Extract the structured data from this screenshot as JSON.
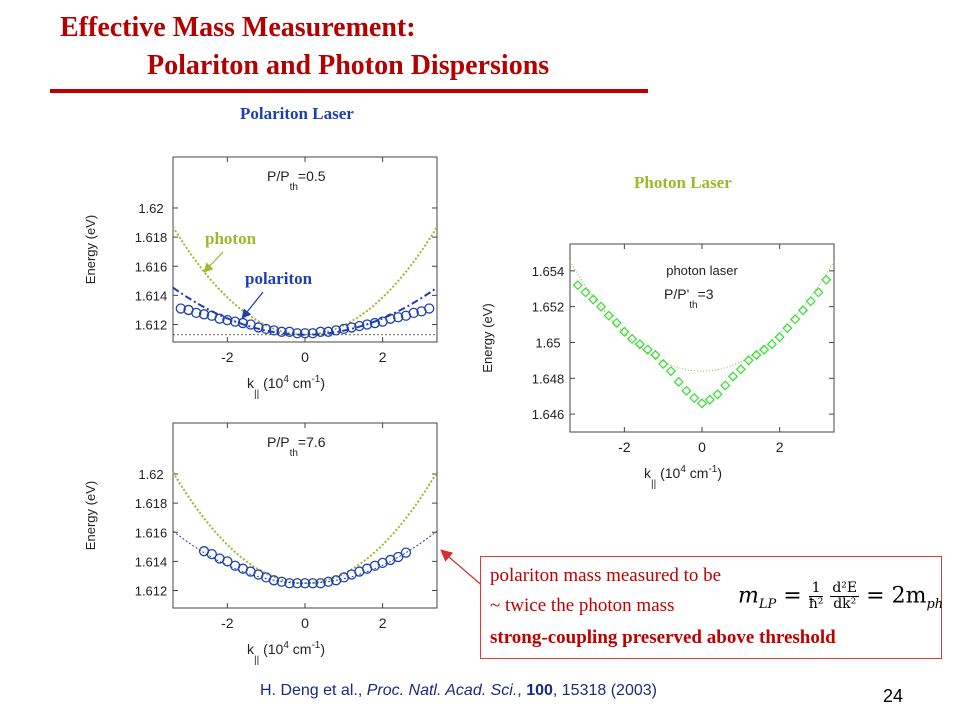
{
  "title": {
    "line1": "Effective Mass Measurement:",
    "line2": "Polariton and Photon Dispersions"
  },
  "panel_labels": {
    "polariton_laser": "Polariton Laser",
    "photon_laser": "Photon Laser"
  },
  "callout": {
    "line1": "polariton mass measured to be",
    "line2": "~ twice the photon mass",
    "line3": "strong-coupling preserved above threshold",
    "formula_lhs": "m",
    "formula_lhs_sub": "LP",
    "formula_eq": "=",
    "formula_num": "1",
    "formula_den": "ħ²",
    "formula_num2": "d²E",
    "formula_den2": "dk²",
    "formula_rhs": "= 2m",
    "formula_rhs_sub": "ph"
  },
  "citation": {
    "authors": "H. Deng et al., ",
    "journal": "Proc. Natl. Acad. Sci.",
    "sep": ", ",
    "volume": "100",
    "pages": ", 15318 (2003)"
  },
  "page_number": "24",
  "colors": {
    "title": "#b40000",
    "polariton": "#1f3fb0",
    "photon": "#9aba2a",
    "photon_laser_markers": "#33dd33",
    "callout": "#c00000"
  },
  "chart_data": [
    {
      "id": "polariton-low",
      "type": "scatter",
      "annotation": "P/P th=0.5",
      "annotation_main": "P/P",
      "annotation_sub": "th",
      "annotation_tail": "=0.5",
      "ylabel": "Energy (eV)",
      "xlabel_main": "k",
      "xlabel_sub": "||",
      "xlabel_unit_pre": " (10",
      "xlabel_unit_exp": "4",
      "xlabel_unit_mid": " cm",
      "xlabel_unit_exp2": "-1",
      "xlabel_unit_post": ")",
      "xlim": [
        -3.4,
        3.4
      ],
      "ylim": [
        1.6108,
        1.6235
      ],
      "xticks": [
        -2,
        0,
        2
      ],
      "xtick_labels": [
        "-2",
        "0",
        "2"
      ],
      "yticks": [
        1.612,
        1.614,
        1.616,
        1.618,
        1.62
      ],
      "ytick_labels": [
        "1.612",
        "1.614",
        "1.616",
        "1.618",
        "1.62"
      ],
      "label_photon": "photon",
      "label_polariton": "polariton",
      "photon_curve": {
        "E0": 1.6113,
        "a": 0.00064
      },
      "polariton_curve": {
        "E0": 1.6113,
        "a": 0.00028
      },
      "reference_line": 1.6113,
      "points": {
        "x": [
          -3.2,
          -3.0,
          -2.8,
          -2.6,
          -2.4,
          -2.2,
          -2.0,
          -1.8,
          -1.6,
          -1.4,
          -1.2,
          -1.0,
          -0.8,
          -0.6,
          -0.4,
          -0.2,
          0.0,
          0.2,
          0.4,
          0.6,
          0.8,
          1.0,
          1.2,
          1.4,
          1.6,
          1.8,
          2.0,
          2.2,
          2.4,
          2.6,
          2.8,
          3.0,
          3.2
        ],
        "y": [
          1.6131,
          1.613,
          1.6128,
          1.6127,
          1.6126,
          1.6124,
          1.6123,
          1.6122,
          1.6121,
          1.612,
          1.6118,
          1.6117,
          1.6116,
          1.6115,
          1.6115,
          1.6114,
          1.6114,
          1.6114,
          1.6115,
          1.6115,
          1.6116,
          1.6117,
          1.6118,
          1.6119,
          1.612,
          1.6121,
          1.6122,
          1.6124,
          1.6125,
          1.6126,
          1.6128,
          1.6129,
          1.6131
        ]
      }
    },
    {
      "id": "polariton-high",
      "type": "scatter",
      "annotation": "P/P th=7.6",
      "annotation_main": "P/P",
      "annotation_sub": "th",
      "annotation_tail": "=7.6",
      "ylabel": "Energy (eV)",
      "xlabel_main": "k",
      "xlabel_sub": "||",
      "xlabel_unit_pre": " (10",
      "xlabel_unit_exp": "4",
      "xlabel_unit_mid": " cm",
      "xlabel_unit_exp2": "-1",
      "xlabel_unit_post": ")",
      "xlim": [
        -3.4,
        3.4
      ],
      "ylim": [
        1.6108,
        1.6235
      ],
      "xticks": [
        -2,
        0,
        2
      ],
      "xtick_labels": [
        "-2",
        "0",
        "2"
      ],
      "yticks": [
        1.612,
        1.614,
        1.616,
        1.618,
        1.62
      ],
      "ytick_labels": [
        "1.612",
        "1.614",
        "1.616",
        "1.618",
        "1.62"
      ],
      "photon_curve": {
        "E0": 1.6125,
        "a": 0.00066
      },
      "polariton_curve": {
        "E0": 1.6125,
        "a": 0.00031
      },
      "points": {
        "x": [
          -2.6,
          -2.4,
          -2.2,
          -2.0,
          -1.8,
          -1.6,
          -1.4,
          -1.2,
          -1.0,
          -0.8,
          -0.6,
          -0.4,
          -0.2,
          0.0,
          0.2,
          0.4,
          0.6,
          0.8,
          1.0,
          1.2,
          1.4,
          1.6,
          1.8,
          2.0,
          2.2,
          2.4,
          2.6
        ],
        "y": [
          1.6147,
          1.6145,
          1.6142,
          1.614,
          1.6137,
          1.6135,
          1.6133,
          1.6131,
          1.6129,
          1.6127,
          1.6126,
          1.6125,
          1.6125,
          1.6125,
          1.6125,
          1.6125,
          1.6126,
          1.6127,
          1.6129,
          1.6131,
          1.6133,
          1.6135,
          1.6137,
          1.6139,
          1.6141,
          1.6143,
          1.6146
        ]
      }
    },
    {
      "id": "photon-laser",
      "type": "scatter",
      "annotation_line1": "photon laser",
      "annotation_main": "P/P'",
      "annotation_sub": "th",
      "annotation_tail": "=3",
      "ylabel": "Energy (eV)",
      "xlabel_main": "k",
      "xlabel_sub": "||",
      "xlabel_unit_pre": " (10",
      "xlabel_unit_exp": "4",
      "xlabel_unit_mid": " cm",
      "xlabel_unit_exp2": "-1",
      "xlabel_unit_post": ")",
      "xlim": [
        -3.4,
        3.4
      ],
      "ylim": [
        1.645,
        1.6555
      ],
      "xticks": [
        -2,
        0,
        2
      ],
      "xtick_labels": [
        "-2",
        "0",
        "2"
      ],
      "yticks": [
        1.646,
        1.648,
        1.65,
        1.652,
        1.654
      ],
      "ytick_labels": [
        "1.646",
        "1.648",
        "1.65",
        "1.652",
        "1.654"
      ],
      "fit_curve": {
        "E0": 1.6484,
        "a": 0.00053
      },
      "points": {
        "x": [
          -3.2,
          -3.0,
          -2.8,
          -2.6,
          -2.4,
          -2.2,
          -2.0,
          -1.8,
          -1.6,
          -1.4,
          -1.2,
          -1.0,
          -0.8,
          -0.6,
          -0.4,
          -0.2,
          0.0,
          0.2,
          0.4,
          0.6,
          0.8,
          1.0,
          1.2,
          1.4,
          1.6,
          1.8,
          2.0,
          2.2,
          2.4,
          2.6,
          2.8,
          3.0,
          3.2
        ],
        "y": [
          1.6532,
          1.6528,
          1.6524,
          1.652,
          1.6515,
          1.6511,
          1.6506,
          1.6502,
          1.6499,
          1.6496,
          1.6493,
          1.6488,
          1.6484,
          1.6478,
          1.6473,
          1.6469,
          1.6466,
          1.6468,
          1.6471,
          1.6476,
          1.6481,
          1.6485,
          1.649,
          1.6493,
          1.6496,
          1.6499,
          1.6503,
          1.6508,
          1.6513,
          1.6518,
          1.6523,
          1.6528,
          1.6535
        ]
      }
    }
  ]
}
